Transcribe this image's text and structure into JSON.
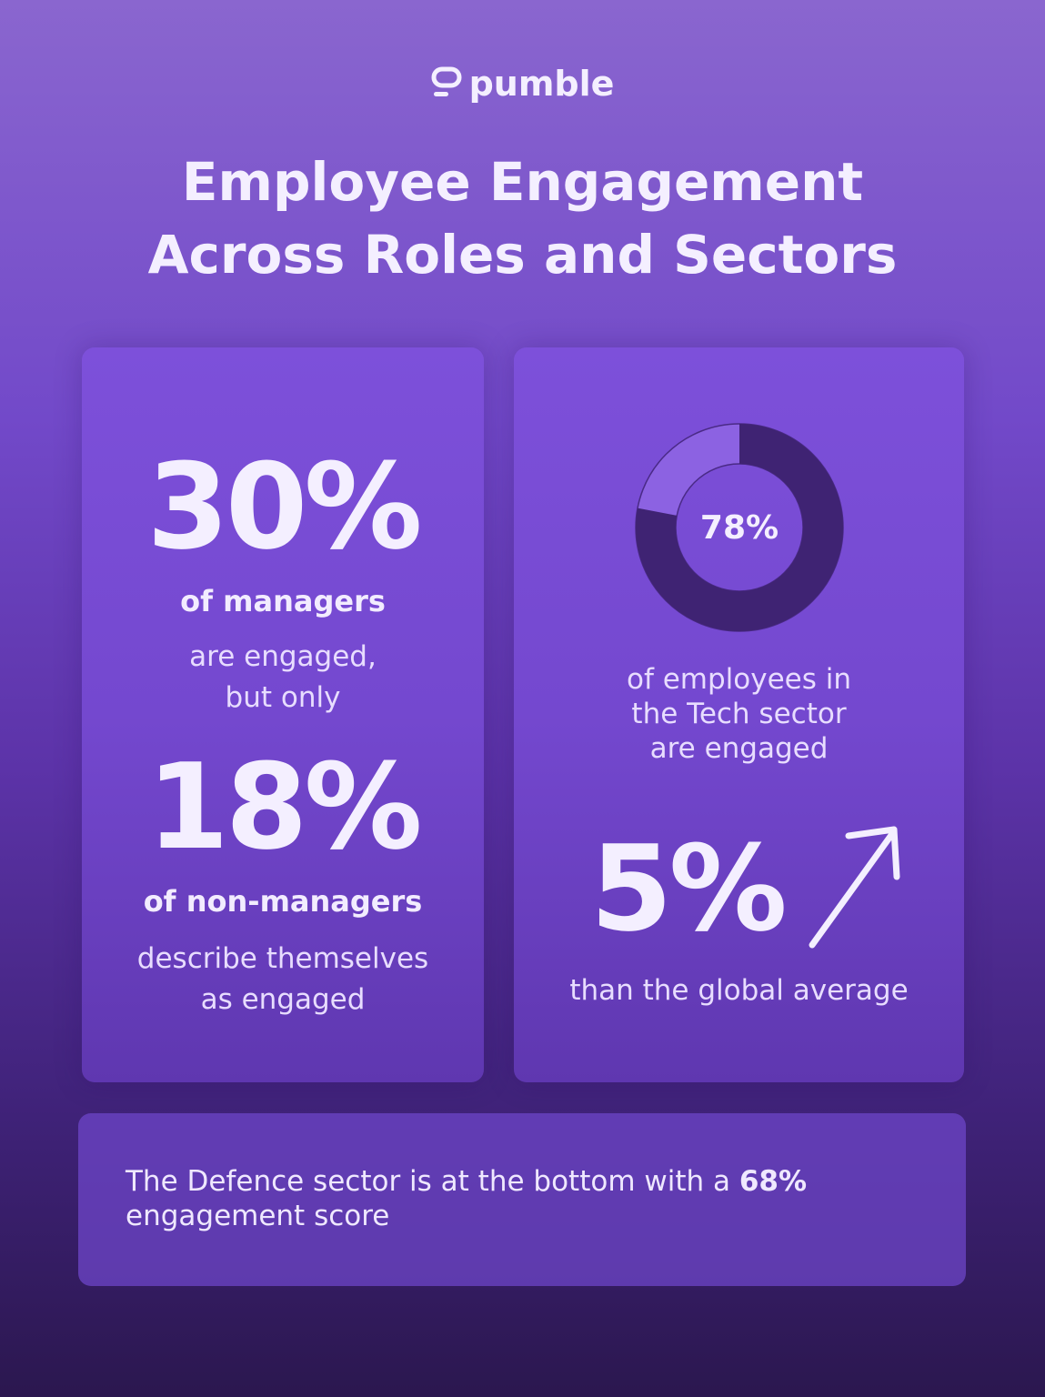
{
  "brand": "pumble",
  "title": [
    "Employee Engagement",
    "Across Roles and Sectors"
  ],
  "left_card": {
    "stat_1": "30%",
    "stat_1_label": "of managers",
    "stat_1_text": [
      "are engaged,",
      "but only"
    ],
    "stat_2": "18%",
    "stat_2_label": "of non-managers",
    "stat_2_text": [
      "describe themselves",
      "as engaged"
    ]
  },
  "right_card": {
    "donut": {
      "value": 78,
      "label": "78%"
    },
    "donut_text": [
      "of employees in",
      "the Tech sector",
      "are engaged"
    ],
    "stat": "5%",
    "stat_text": "than the global average"
  },
  "bottom_card": {
    "text_before": "The Defence sector is at the bottom with a ",
    "bold": "68%",
    "text_after": " engagement score"
  }
}
